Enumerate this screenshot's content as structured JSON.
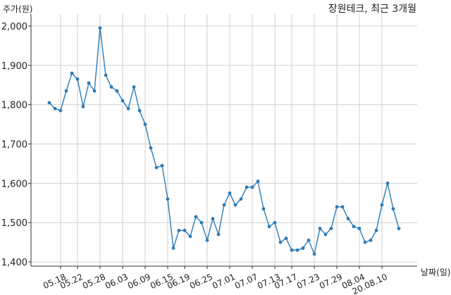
{
  "chart_data": {
    "type": "line",
    "title": "장원테크, 최근 3개월",
    "ylabel": "주가(원)",
    "xlabel": "날짜(일)",
    "ylim": [
      1400,
      2000
    ],
    "yticks": [
      1400,
      1500,
      1600,
      1700,
      1800,
      1900,
      2000
    ],
    "ytick_labels": [
      "1,400",
      "1,500",
      "1,600",
      "1,700",
      "1,800",
      "1,900",
      "2,000"
    ],
    "xtick_labels": [
      "05.18",
      "05.22",
      "05.28",
      "06.03",
      "06.09",
      "06.15",
      "06.19",
      "06.25",
      "07.01",
      "07.07",
      "07.13",
      "07.17",
      "07.23",
      "07.29",
      "08.04",
      "20.08.10"
    ],
    "xtick_index": [
      2,
      5,
      9,
      13,
      17,
      21,
      24,
      28,
      32,
      36,
      40,
      43,
      47,
      51,
      55,
      59
    ],
    "grid": true,
    "line_color": "#2b7bb9",
    "series": [
      {
        "values": [
          1805,
          1790,
          1785,
          1835,
          1880,
          1865,
          1795,
          1855,
          1835,
          1995,
          1875,
          1845,
          1835,
          1810,
          1790,
          1845,
          1785,
          1750,
          1690,
          1640,
          1645,
          1560,
          1435,
          1480,
          1480,
          1465,
          1515,
          1500,
          1455,
          1510,
          1470,
          1545,
          1575,
          1545,
          1560,
          1590,
          1590,
          1605,
          1535,
          1490,
          1500,
          1450,
          1460,
          1430,
          1430,
          1435,
          1455,
          1420,
          1485,
          1470,
          1485,
          1540,
          1540,
          1510,
          1490,
          1485,
          1450,
          1455,
          1480,
          1545,
          1600,
          1535,
          1485
        ]
      }
    ]
  }
}
